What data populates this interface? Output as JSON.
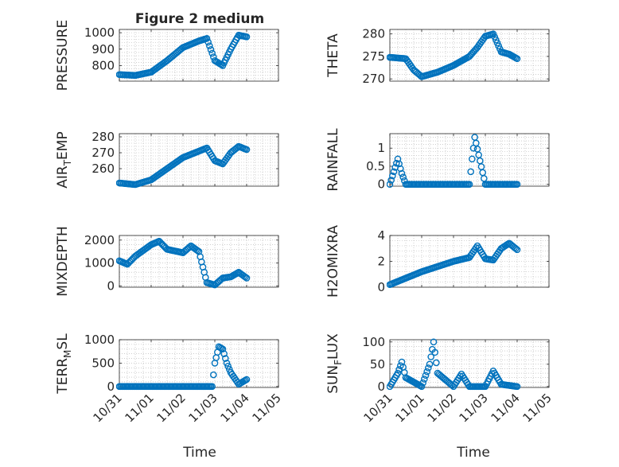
{
  "figure_title": "Figure 2 medium",
  "x_axis": {
    "label": "Time",
    "ticks": [
      "10/31",
      "11/01",
      "11/02",
      "11/03",
      "11/04",
      "11/05"
    ]
  },
  "colors": {
    "marker": "#0072BD",
    "grid": "#b0b0b0",
    "axis": "#262626"
  },
  "chart_data": [
    {
      "type": "scatter",
      "ylabel": "PRESSURE",
      "xlim": [
        "10/31",
        "11/05"
      ],
      "ylim": [
        705,
        1020
      ],
      "yticks": [
        800,
        900,
        1000
      ],
      "grid": true,
      "x": [
        "10/31",
        "10/31 12:00",
        "11/01",
        "11/01 12:00",
        "11/02",
        "11/02 12:00",
        "11/02 18:00",
        "11/03",
        "11/03 06:00",
        "11/03 12:00",
        "11/03 18:00",
        "11/04"
      ],
      "values": [
        745,
        740,
        760,
        830,
        910,
        950,
        965,
        830,
        800,
        900,
        985,
        975
      ]
    },
    {
      "type": "scatter",
      "ylabel": "THETA",
      "xlim": [
        "10/31",
        "11/05"
      ],
      "ylim": [
        269.5,
        281
      ],
      "yticks": [
        270,
        275,
        280
      ],
      "grid": true,
      "x": [
        "10/31",
        "10/31 12:00",
        "10/31 18:00",
        "11/01",
        "11/01 12:00",
        "11/02",
        "11/02 12:00",
        "11/02 18:00",
        "11/03",
        "11/03 06:00",
        "11/03 12:00",
        "11/03 18:00",
        "11/04"
      ],
      "values": [
        274.8,
        274.5,
        272,
        270.5,
        271.5,
        273,
        275,
        277,
        279.5,
        280,
        276,
        275.5,
        274.5
      ]
    },
    {
      "type": "scatter",
      "ylabel": "AIR_TEMP",
      "xlim": [
        "10/31",
        "11/05"
      ],
      "ylim": [
        249,
        282
      ],
      "yticks": [
        260,
        270,
        280
      ],
      "grid": true,
      "x": [
        "10/31",
        "10/31 12:00",
        "11/01",
        "11/01 12:00",
        "11/02",
        "11/02 12:00",
        "11/02 18:00",
        "11/03",
        "11/03 06:00",
        "11/03 12:00",
        "11/03 18:00",
        "11/04"
      ],
      "values": [
        251,
        250,
        253,
        260,
        267,
        271,
        273,
        265,
        263,
        270,
        274,
        272
      ]
    },
    {
      "type": "scatter",
      "ylabel": "RAINFALL",
      "xlim": [
        "10/31",
        "11/05"
      ],
      "ylim": [
        -0.05,
        1.4
      ],
      "yticks": [
        0,
        0.5,
        1
      ],
      "grid": true,
      "x": [
        "10/31",
        "10/31 06:00",
        "10/31 09:00",
        "10/31 12:00",
        "11/01",
        "11/02",
        "11/02 12:00",
        "11/02 14:00",
        "11/02 16:00",
        "11/03",
        "11/04"
      ],
      "values": [
        0,
        0.7,
        0.3,
        0,
        0,
        0,
        0,
        0.7,
        1.3,
        0,
        0
      ]
    },
    {
      "type": "scatter",
      "ylabel": "MIXDEPTH",
      "xlim": [
        "10/31",
        "11/05"
      ],
      "ylim": [
        -50,
        2200
      ],
      "yticks": [
        0,
        1000,
        2000
      ],
      "grid": true,
      "x": [
        "10/31",
        "10/31 06:00",
        "10/31 12:00",
        "11/01",
        "11/01 06:00",
        "11/01 12:00",
        "11/02",
        "11/02 06:00",
        "11/02 12:00",
        "11/02 18:00",
        "11/03",
        "11/03 06:00",
        "11/03 12:00",
        "11/03 18:00",
        "11/04"
      ],
      "values": [
        1100,
        950,
        1300,
        1800,
        1950,
        1600,
        1450,
        1750,
        1500,
        150,
        50,
        350,
        400,
        600,
        350
      ]
    },
    {
      "type": "scatter",
      "ylabel": "H2OMIXRA",
      "xlim": [
        "10/31",
        "11/05"
      ],
      "ylim": [
        0,
        4
      ],
      "yticks": [
        0,
        2,
        4
      ],
      "grid": true,
      "x": [
        "10/31",
        "10/31 12:00",
        "11/01",
        "11/01 12:00",
        "11/02",
        "11/02 12:00",
        "11/02 18:00",
        "11/03",
        "11/03 06:00",
        "11/03 12:00",
        "11/03 18:00",
        "11/04"
      ],
      "values": [
        0.2,
        0.7,
        1.2,
        1.6,
        2,
        2.3,
        3.2,
        2.2,
        2.1,
        3,
        3.4,
        2.9
      ]
    },
    {
      "type": "scatter",
      "ylabel": "TERR_MSL",
      "xlim": [
        "10/31",
        "11/05"
      ],
      "ylim": [
        -20,
        1000
      ],
      "yticks": [
        0,
        500,
        1000
      ],
      "grid": true,
      "x": [
        "10/31",
        "11/01",
        "11/02",
        "11/02 22:00",
        "11/03",
        "11/03 03:00",
        "11/03 06:00",
        "11/03 09:00",
        "11/03 12:00",
        "11/03 18:00",
        "11/04"
      ],
      "values": [
        0,
        0,
        0,
        0,
        500,
        850,
        800,
        500,
        300,
        50,
        150
      ]
    },
    {
      "type": "scatter",
      "ylabel": "SUN_FLUX",
      "xlim": [
        "10/31",
        "11/05"
      ],
      "ylim": [
        -2,
        105
      ],
      "yticks": [
        0,
        50,
        100
      ],
      "grid": true,
      "x": [
        "10/31",
        "10/31 06:00",
        "10/31 09:00",
        "10/31 12:00",
        "11/01",
        "11/01 06:00",
        "11/01 09:00",
        "11/01 12:00",
        "11/02",
        "11/02 06:00",
        "11/02 12:00",
        "11/03",
        "11/03 06:00",
        "11/03 12:00",
        "11/04"
      ],
      "values": [
        0,
        30,
        55,
        20,
        0,
        50,
        100,
        30,
        0,
        28,
        0,
        0,
        35,
        5,
        0
      ]
    }
  ]
}
